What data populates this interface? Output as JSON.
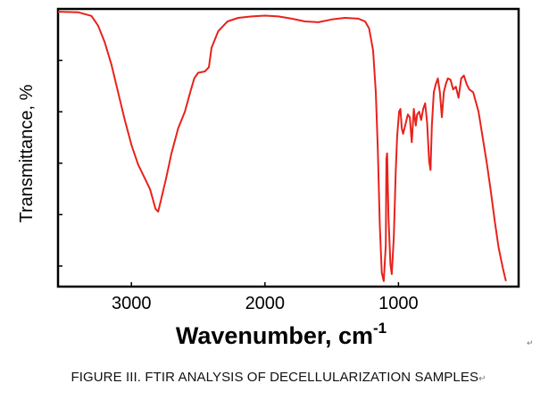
{
  "chart_data": {
    "type": "line",
    "title": "",
    "xlabel": "Wavenumber, cm",
    "xlabel_sup": "-1",
    "ylabel": "Transmittance, %",
    "xlim": [
      3550,
      100
    ],
    "ylim": [
      0,
      100
    ],
    "x_ticks": [
      3000,
      2000,
      1000
    ],
    "grid": false,
    "series": [
      {
        "color": "#e8221c",
        "points": [
          [
            3550,
            99
          ],
          [
            3400,
            98.8
          ],
          [
            3300,
            97.5
          ],
          [
            3250,
            94
          ],
          [
            3200,
            88
          ],
          [
            3150,
            80
          ],
          [
            3100,
            70
          ],
          [
            3050,
            60
          ],
          [
            3000,
            51
          ],
          [
            2950,
            44
          ],
          [
            2900,
            39
          ],
          [
            2860,
            35
          ],
          [
            2820,
            28
          ],
          [
            2800,
            27
          ],
          [
            2780,
            31
          ],
          [
            2740,
            39
          ],
          [
            2700,
            48
          ],
          [
            2650,
            57
          ],
          [
            2600,
            63
          ],
          [
            2560,
            70
          ],
          [
            2530,
            75
          ],
          [
            2500,
            77
          ],
          [
            2450,
            77.5
          ],
          [
            2420,
            79
          ],
          [
            2400,
            86
          ],
          [
            2350,
            92
          ],
          [
            2280,
            95.5
          ],
          [
            2200,
            96.8
          ],
          [
            2100,
            97.3
          ],
          [
            2000,
            97.6
          ],
          [
            1900,
            97.3
          ],
          [
            1800,
            96.5
          ],
          [
            1700,
            95.5
          ],
          [
            1600,
            95.2
          ],
          [
            1500,
            96.2
          ],
          [
            1400,
            96.8
          ],
          [
            1300,
            96.5
          ],
          [
            1250,
            95.5
          ],
          [
            1220,
            93
          ],
          [
            1190,
            85
          ],
          [
            1170,
            70
          ],
          [
            1155,
            50
          ],
          [
            1140,
            22
          ],
          [
            1125,
            5
          ],
          [
            1110,
            2
          ],
          [
            1095,
            15
          ],
          [
            1090,
            46
          ],
          [
            1085,
            48
          ],
          [
            1075,
            25
          ],
          [
            1060,
            8
          ],
          [
            1050,
            4.5
          ],
          [
            1035,
            18
          ],
          [
            1020,
            42
          ],
          [
            1010,
            54
          ],
          [
            995,
            63
          ],
          [
            985,
            64
          ],
          [
            975,
            57
          ],
          [
            965,
            55
          ],
          [
            950,
            58
          ],
          [
            930,
            62
          ],
          [
            915,
            61
          ],
          [
            900,
            52
          ],
          [
            885,
            64
          ],
          [
            870,
            58
          ],
          [
            860,
            62
          ],
          [
            845,
            63
          ],
          [
            830,
            60
          ],
          [
            815,
            64
          ],
          [
            800,
            66
          ],
          [
            785,
            59
          ],
          [
            770,
            45
          ],
          [
            760,
            42
          ],
          [
            750,
            58
          ],
          [
            735,
            70
          ],
          [
            720,
            73
          ],
          [
            705,
            75
          ],
          [
            690,
            70
          ],
          [
            675,
            61
          ],
          [
            660,
            70
          ],
          [
            645,
            73
          ],
          [
            630,
            75
          ],
          [
            610,
            74.5
          ],
          [
            590,
            71
          ],
          [
            570,
            72
          ],
          [
            550,
            68
          ],
          [
            530,
            75
          ],
          [
            510,
            76
          ],
          [
            490,
            73
          ],
          [
            470,
            71
          ],
          [
            440,
            70
          ],
          [
            400,
            63
          ],
          [
            370,
            54
          ],
          [
            340,
            45
          ],
          [
            310,
            35
          ],
          [
            280,
            24
          ],
          [
            250,
            14
          ],
          [
            220,
            7
          ],
          [
            205,
            4
          ],
          [
            195,
            2
          ]
        ]
      }
    ]
  },
  "caption": "FIGURE III. FTIR ANALYSIS OF DECELLULARIZATION SAMPLES",
  "return_mark": "↵"
}
